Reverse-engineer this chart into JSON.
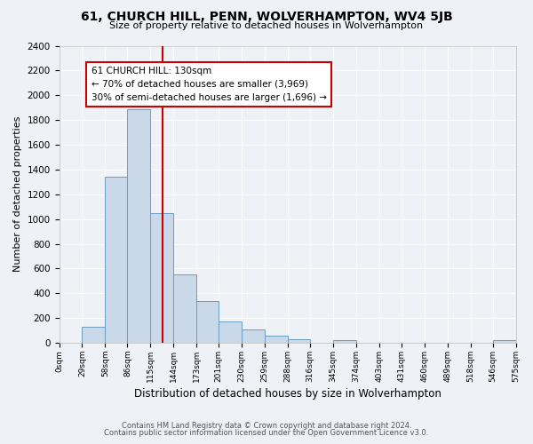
{
  "title": "61, CHURCH HILL, PENN, WOLVERHAMPTON, WV4 5JB",
  "subtitle": "Size of property relative to detached houses in Wolverhampton",
  "xlabel": "Distribution of detached houses by size in Wolverhampton",
  "ylabel": "Number of detached properties",
  "footer_lines": [
    "Contains HM Land Registry data © Crown copyright and database right 2024.",
    "Contains public sector information licensed under the Open Government Licence v3.0."
  ],
  "bar_edges": [
    0,
    29,
    58,
    86,
    115,
    144,
    173,
    201,
    230,
    259,
    288,
    316,
    345,
    374,
    403,
    431,
    460,
    489,
    518,
    546,
    575
  ],
  "bar_heights": [
    0,
    130,
    1340,
    1890,
    1050,
    550,
    340,
    175,
    110,
    60,
    30,
    0,
    20,
    0,
    0,
    0,
    0,
    0,
    0,
    25
  ],
  "bar_color": "#c9d9ea",
  "bar_edge_color": "#6a9dbe",
  "vline_x": 130,
  "vline_color": "#cc0000",
  "annotation_title": "61 CHURCH HILL: 130sqm",
  "annotation_line1": "← 70% of detached houses are smaller (3,969)",
  "annotation_line2": "30% of semi-detached houses are larger (1,696) →",
  "xlim": [
    0,
    575
  ],
  "ylim": [
    0,
    2400
  ],
  "yticks": [
    0,
    200,
    400,
    600,
    800,
    1000,
    1200,
    1400,
    1600,
    1800,
    2000,
    2200,
    2400
  ],
  "xtick_labels": [
    "0sqm",
    "29sqm",
    "58sqm",
    "86sqm",
    "115sqm",
    "144sqm",
    "173sqm",
    "201sqm",
    "230sqm",
    "259sqm",
    "288sqm",
    "316sqm",
    "345sqm",
    "374sqm",
    "403sqm",
    "431sqm",
    "460sqm",
    "489sqm",
    "518sqm",
    "546sqm",
    "575sqm"
  ],
  "background_color": "#eef2f7",
  "plot_bg_color": "#eef2f7",
  "grid_color": "#ffffff",
  "title_fontsize": 10,
  "subtitle_fontsize": 8,
  "ylabel_fontsize": 8,
  "xlabel_fontsize": 8.5,
  "ytick_fontsize": 7.5,
  "xtick_fontsize": 6.5,
  "footer_fontsize": 6,
  "ann_fontsize": 7.5
}
